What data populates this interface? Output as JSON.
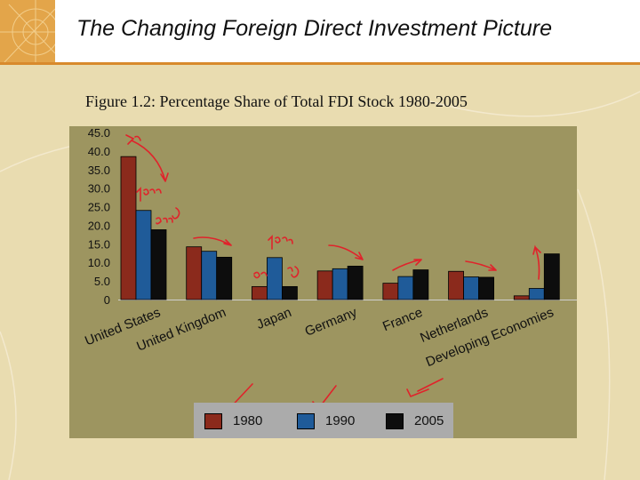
{
  "slide": {
    "title": "The Changing Foreign Direct Investment Picture",
    "caption": "Figure 1.2: Percentage Share of Total FDI Stock 1980-2005"
  },
  "colors": {
    "1980": "#8b2a1c",
    "1990": "#1f5b99",
    "2005": "#0d0d0d",
    "annotation": "#e0232b"
  },
  "chart_data": {
    "type": "bar",
    "categories": [
      "United States",
      "United Kingdom",
      "Japan",
      "Germany",
      "France",
      "Netherlands",
      "Developing Economies"
    ],
    "series": [
      {
        "name": "1980",
        "values": [
          38.5,
          14.2,
          3.5,
          7.7,
          4.4,
          7.6,
          1.0
        ]
      },
      {
        "name": "1990",
        "values": [
          24.0,
          13.0,
          11.3,
          8.3,
          6.2,
          6.1,
          3.0
        ]
      },
      {
        "name": "2005",
        "values": [
          18.8,
          11.4,
          3.5,
          9.0,
          8.0,
          6.0,
          12.3
        ]
      }
    ],
    "ylim": [
      0,
      45
    ],
    "yticks": [
      "0",
      "5.0",
      "10.0",
      "15.0",
      "20.0",
      "25.0",
      "30.0",
      "35.0",
      "40.0",
      "45.0"
    ],
    "grid": false,
    "legend_position": "bottom",
    "legend": [
      "1980",
      "1990",
      "2005"
    ]
  }
}
